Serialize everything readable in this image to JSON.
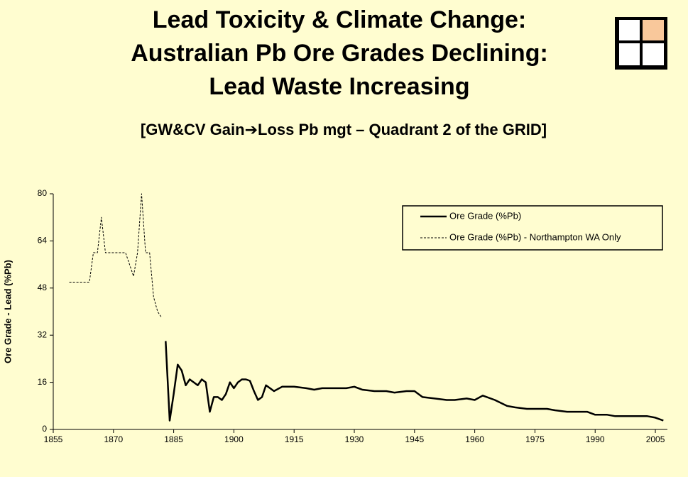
{
  "chart_data": {
    "type": "line",
    "title": [
      "Lead Toxicity & Climate Change:",
      "Australian Pb Ore Grades Declining:",
      "Lead Waste Increasing"
    ],
    "subtitle": "[GW&CV Gain➔Loss Pb mgt – Quadrant 2 of the GRID]",
    "y_label": "Ore Grade - Lead (%Pb)",
    "xlim": [
      1855,
      2008
    ],
    "xticks": [
      1855,
      1870,
      1885,
      1900,
      1915,
      1930,
      1945,
      1960,
      1975,
      1990,
      2005
    ],
    "ylim": [
      0,
      80
    ],
    "yticks": [
      0,
      16,
      32,
      48,
      64,
      80
    ],
    "legend_position": "upper right",
    "series": [
      {
        "name": "Ore Grade (%Pb)",
        "color": "#000000",
        "line_style": "solid",
        "x": [
          1883,
          1884,
          1885,
          1886,
          1887,
          1888,
          1889,
          1890,
          1891,
          1892,
          1893,
          1894,
          1895,
          1896,
          1897,
          1898,
          1899,
          1900,
          1901,
          1902,
          1903,
          1904,
          1905,
          1906,
          1907,
          1908,
          1909,
          1910,
          1912,
          1915,
          1918,
          1920,
          1922,
          1925,
          1928,
          1930,
          1932,
          1935,
          1938,
          1940,
          1943,
          1945,
          1947,
          1950,
          1953,
          1955,
          1958,
          1960,
          1962,
          1965,
          1968,
          1970,
          1973,
          1975,
          1978,
          1980,
          1983,
          1985,
          1988,
          1990,
          1993,
          1995,
          1998,
          2000,
          2003,
          2005,
          2007
        ],
        "values": [
          30,
          3,
          12,
          22,
          20,
          15,
          17,
          16,
          15,
          17,
          16,
          6,
          11,
          11,
          10,
          12,
          16,
          14,
          16,
          17,
          17,
          16.5,
          13,
          10,
          11,
          15,
          14,
          13,
          14.5,
          14.5,
          14,
          13.5,
          14,
          14,
          14,
          14.5,
          13.5,
          13,
          13,
          12.5,
          13,
          13,
          11,
          10.5,
          10,
          10,
          10.5,
          10,
          11.5,
          10,
          8,
          7.5,
          7,
          7,
          7,
          6.5,
          6,
          6,
          6,
          5,
          5,
          4.5,
          4.5,
          4.5,
          4.5,
          4,
          3
        ]
      },
      {
        "name": "Ore Grade (%Pb) - Northampton WA Only",
        "color": "#000000",
        "line_style": "dashed",
        "x": [
          1859,
          1864,
          1865,
          1866,
          1867,
          1868,
          1870,
          1873,
          1875,
          1876,
          1877,
          1878,
          1879,
          1880,
          1881,
          1882
        ],
        "values": [
          50,
          50,
          60,
          60,
          72,
          60,
          60,
          60,
          52,
          60,
          80,
          60,
          60,
          45,
          40,
          38
        ]
      }
    ]
  }
}
